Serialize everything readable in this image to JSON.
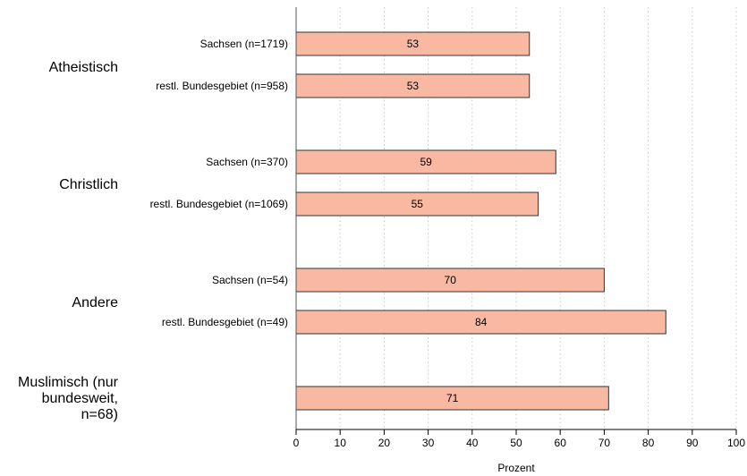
{
  "chart_data": {
    "type": "bar",
    "orientation": "horizontal",
    "xlabel": "Prozent",
    "xlim": [
      0,
      100
    ],
    "xticks": [
      0,
      10,
      20,
      30,
      40,
      50,
      60,
      70,
      80,
      90,
      100
    ],
    "grid": "vertical dotted",
    "colors": {
      "bar_fill": "#f9b8a2",
      "bar_stroke": "#333333"
    },
    "groups": [
      {
        "label": "Atheistisch",
        "bars": [
          {
            "label": "Sachsen (n=1719)",
            "value": 53
          },
          {
            "label": "restl. Bundesgebiet (n=958)",
            "value": 53
          }
        ]
      },
      {
        "label": "Christlich",
        "bars": [
          {
            "label": "Sachsen (n=370)",
            "value": 59
          },
          {
            "label": "restl. Bundesgebiet (n=1069)",
            "value": 55
          }
        ]
      },
      {
        "label": "Andere",
        "bars": [
          {
            "label": "Sachsen (n=54)",
            "value": 70
          },
          {
            "label": "restl. Bundesgebiet (n=49)",
            "value": 84
          }
        ]
      },
      {
        "label_lines": [
          "Muslimisch (nur",
          "bundesweit,",
          "n=68)"
        ],
        "bars": [
          {
            "label": "",
            "value": 71
          }
        ]
      }
    ]
  }
}
